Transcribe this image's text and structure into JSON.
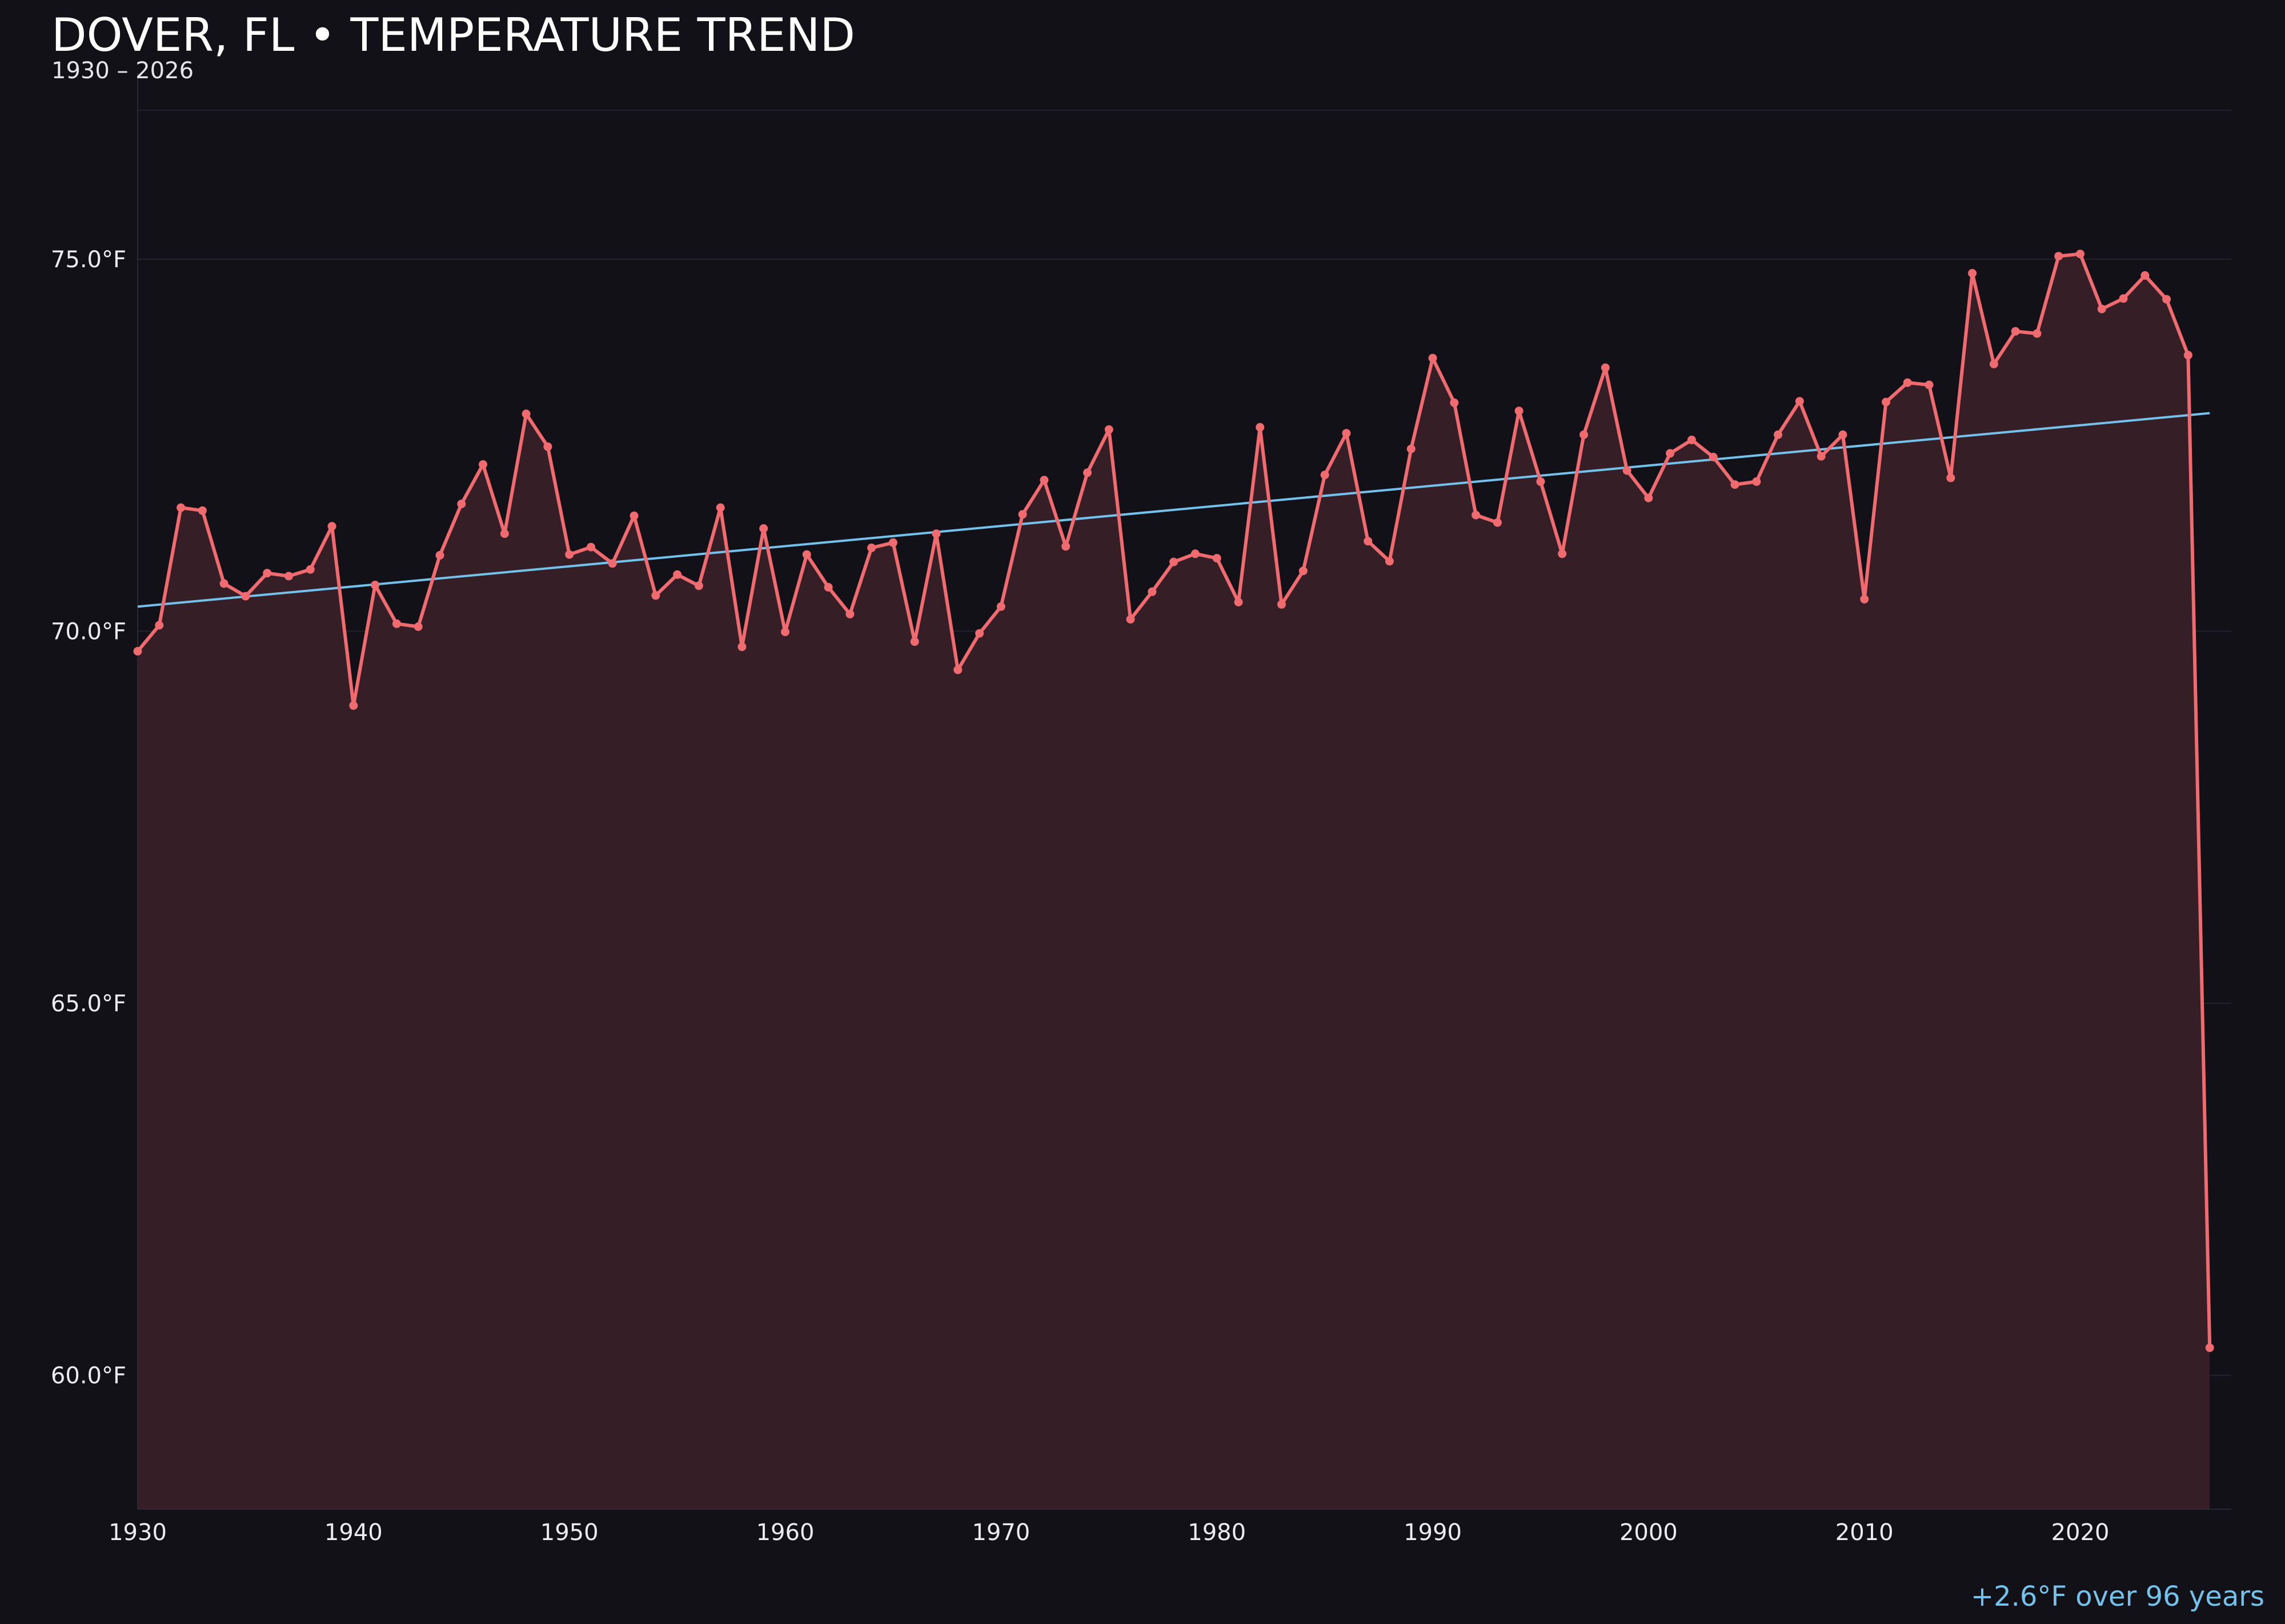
{
  "header": {
    "title": "DOVER, FL • TEMPERATURE TREND",
    "subtitle": "1930 – 2026"
  },
  "footnote": "+2.6°F over 96 years",
  "colors": {
    "background": "#121118",
    "line": "#ef6b70",
    "fill": "#351e26",
    "trend": "#74c2ec",
    "grid": "#24222a",
    "text": "#ececf0"
  },
  "chart_data": {
    "type": "line",
    "title": "DOVER, FL • TEMPERATURE TREND",
    "subtitle": "1930 – 2026",
    "xlabel": "",
    "ylabel": "",
    "xlim": [
      1930,
      2027
    ],
    "ylim": [
      58.2,
      77.5
    ],
    "x_ticks": [
      1930,
      1940,
      1950,
      1960,
      1970,
      1980,
      1990,
      2000,
      2010,
      2020
    ],
    "y_ticks": [
      60.0,
      65.0,
      70.0,
      75.0
    ],
    "y_tick_labels": [
      "60.0°F",
      "65.0°F",
      "70.0°F",
      "75.0°F"
    ],
    "grid": true,
    "series": [
      {
        "x": [
          1930,
          1931,
          1932,
          1933,
          1934,
          1935,
          1936,
          1937,
          1938,
          1939,
          1940,
          1941,
          1942,
          1943,
          1944,
          1945,
          1946,
          1947,
          1948,
          1949,
          1950,
          1951,
          1952,
          1953,
          1954,
          1955,
          1956,
          1957,
          1958,
          1959,
          1960,
          1961,
          1962,
          1963,
          1964,
          1965,
          1966,
          1967,
          1968,
          1969,
          1970,
          1971,
          1972,
          1973,
          1974,
          1975,
          1976,
          1977,
          1978,
          1979,
          1980,
          1981,
          1982,
          1983,
          1984,
          1985,
          1986,
          1987,
          1988,
          1989,
          1990,
          1991,
          1992,
          1993,
          1994,
          1995,
          1996,
          1997,
          1998,
          1999,
          2000,
          2001,
          2002,
          2003,
          2004,
          2005,
          2006,
          2007,
          2008,
          2009,
          2010,
          2011,
          2012,
          2013,
          2014,
          2015,
          2016,
          2017,
          2018,
          2019,
          2020,
          2021,
          2022,
          2023,
          2024,
          2025,
          2026
        ],
        "values": [
          69.73,
          70.08,
          71.66,
          71.62,
          70.64,
          70.47,
          70.78,
          70.74,
          70.83,
          71.41,
          69.0,
          70.62,
          70.1,
          70.06,
          71.02,
          71.71,
          72.24,
          71.31,
          72.92,
          72.48,
          71.03,
          71.13,
          70.91,
          71.55,
          70.48,
          70.76,
          70.61,
          71.66,
          69.79,
          71.38,
          69.99,
          71.03,
          70.59,
          70.23,
          71.12,
          71.19,
          69.86,
          71.31,
          69.48,
          69.97,
          70.33,
          71.57,
          72.03,
          71.14,
          72.13,
          72.71,
          70.16,
          70.53,
          70.93,
          71.04,
          70.98,
          70.39,
          72.74,
          70.36,
          70.81,
          72.1,
          72.66,
          71.21,
          70.94,
          72.45,
          73.67,
          73.07,
          71.56,
          71.46,
          72.96,
          72.01,
          71.04,
          72.64,
          73.54,
          72.16,
          71.79,
          72.39,
          72.57,
          72.34,
          71.97,
          72.01,
          72.64,
          73.09,
          72.35,
          72.64,
          70.43,
          73.08,
          73.34,
          73.31,
          72.06,
          74.81,
          73.59,
          74.03,
          74.0,
          75.04,
          75.07,
          74.33,
          74.47,
          74.78,
          74.46,
          73.71,
          60.37
        ]
      }
    ],
    "trend": {
      "x": [
        1930,
        2026
      ],
      "values": [
        70.33,
        72.93
      ]
    }
  }
}
